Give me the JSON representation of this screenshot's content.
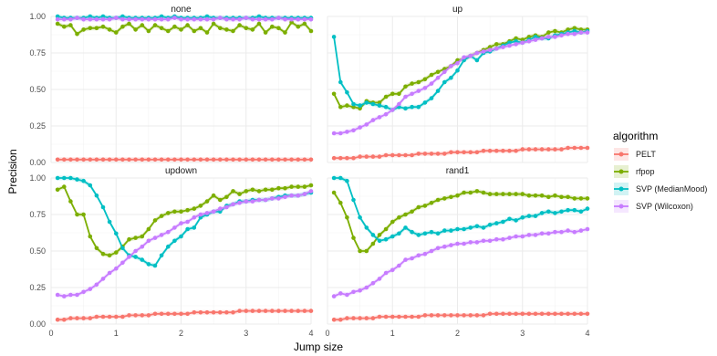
{
  "chart_data": {
    "type": "line",
    "xlabel": "Jump size",
    "ylabel": "Precision",
    "xlim": [
      0,
      4
    ],
    "ylim": [
      0,
      1
    ],
    "x_ticks": [
      0,
      1,
      2,
      3,
      4
    ],
    "y_ticks": [
      0.0,
      0.25,
      0.5,
      0.75,
      1.0
    ],
    "y_tick_labels": [
      "0.00",
      "0.25",
      "0.50",
      "0.75",
      "1.00"
    ],
    "grid": true,
    "legend_title": "algorithm",
    "legend_position": "right",
    "series_styles": [
      {
        "name": "PELT",
        "color": "#F8766D"
      },
      {
        "name": "rfpop",
        "color": "#7CAE00"
      },
      {
        "name": "SVP (MedianMood)",
        "color": "#00BFC4"
      },
      {
        "name": "SVP (Wilcoxon)",
        "color": "#C77CFF"
      }
    ],
    "x": [
      0.1,
      0.2,
      0.3,
      0.4,
      0.5,
      0.6,
      0.7,
      0.8,
      0.9,
      1.0,
      1.1,
      1.2,
      1.3,
      1.4,
      1.5,
      1.6,
      1.7,
      1.8,
      1.9,
      2.0,
      2.1,
      2.2,
      2.3,
      2.4,
      2.5,
      2.6,
      2.7,
      2.8,
      2.9,
      3.0,
      3.1,
      3.2,
      3.3,
      3.4,
      3.5,
      3.6,
      3.7,
      3.8,
      3.9,
      4.0
    ],
    "panels": [
      {
        "title": "none",
        "series": [
          {
            "name": "PELT",
            "values": [
              0.02,
              0.02,
              0.02,
              0.02,
              0.02,
              0.02,
              0.02,
              0.02,
              0.02,
              0.02,
              0.02,
              0.02,
              0.02,
              0.02,
              0.02,
              0.02,
              0.02,
              0.02,
              0.02,
              0.02,
              0.02,
              0.02,
              0.02,
              0.02,
              0.02,
              0.02,
              0.02,
              0.02,
              0.02,
              0.02,
              0.02,
              0.02,
              0.02,
              0.02,
              0.02,
              0.02,
              0.02,
              0.02,
              0.02,
              0.02
            ]
          },
          {
            "name": "rfpop",
            "values": [
              0.95,
              0.93,
              0.94,
              0.88,
              0.91,
              0.92,
              0.92,
              0.93,
              0.91,
              0.89,
              0.93,
              0.95,
              0.91,
              0.94,
              0.9,
              0.94,
              0.92,
              0.9,
              0.93,
              0.91,
              0.94,
              0.9,
              0.92,
              0.89,
              0.95,
              0.92,
              0.91,
              0.9,
              0.94,
              0.92,
              0.91,
              0.95,
              0.89,
              0.93,
              0.92,
              0.89,
              0.96,
              0.93,
              0.95,
              0.9
            ]
          },
          {
            "name": "SVP (MedianMood)",
            "values": [
              1.0,
              0.99,
              0.99,
              0.99,
              0.99,
              1.0,
              0.99,
              1.0,
              0.99,
              0.99,
              1.0,
              0.99,
              0.99,
              0.99,
              0.99,
              0.99,
              1.0,
              0.99,
              1.0,
              0.99,
              0.99,
              0.99,
              0.99,
              1.0,
              0.99,
              0.99,
              0.99,
              0.99,
              0.99,
              0.99,
              0.99,
              1.0,
              0.99,
              0.99,
              0.99,
              0.99,
              0.99,
              0.99,
              0.99,
              0.99
            ]
          },
          {
            "name": "SVP (Wilcoxon)",
            "values": [
              0.98,
              0.98,
              0.98,
              0.99,
              0.98,
              0.98,
              0.98,
              0.98,
              0.98,
              0.99,
              0.98,
              0.98,
              0.98,
              0.98,
              0.98,
              0.98,
              0.98,
              0.98,
              0.99,
              0.98,
              0.98,
              0.98,
              0.98,
              0.98,
              0.98,
              0.99,
              0.98,
              0.98,
              0.98,
              0.99,
              0.98,
              0.98,
              0.98,
              0.98,
              0.99,
              0.98,
              0.98,
              0.98,
              0.98,
              0.98
            ]
          }
        ]
      },
      {
        "title": "up",
        "series": [
          {
            "name": "PELT",
            "values": [
              0.03,
              0.03,
              0.03,
              0.03,
              0.04,
              0.04,
              0.04,
              0.04,
              0.05,
              0.05,
              0.05,
              0.05,
              0.05,
              0.06,
              0.06,
              0.06,
              0.06,
              0.06,
              0.07,
              0.07,
              0.07,
              0.07,
              0.07,
              0.08,
              0.08,
              0.08,
              0.08,
              0.08,
              0.08,
              0.09,
              0.09,
              0.09,
              0.09,
              0.09,
              0.09,
              0.09,
              0.1,
              0.1,
              0.1,
              0.1
            ]
          },
          {
            "name": "rfpop",
            "values": [
              0.47,
              0.38,
              0.39,
              0.38,
              0.37,
              0.42,
              0.41,
              0.41,
              0.45,
              0.47,
              0.47,
              0.52,
              0.54,
              0.55,
              0.57,
              0.6,
              0.62,
              0.64,
              0.66,
              0.7,
              0.71,
              0.73,
              0.75,
              0.77,
              0.79,
              0.81,
              0.81,
              0.83,
              0.85,
              0.84,
              0.86,
              0.87,
              0.86,
              0.89,
              0.9,
              0.89,
              0.91,
              0.92,
              0.91,
              0.91
            ]
          },
          {
            "name": "SVP (MedianMood)",
            "values": [
              0.86,
              0.55,
              0.48,
              0.4,
              0.39,
              0.41,
              0.4,
              0.39,
              0.38,
              0.36,
              0.38,
              0.37,
              0.38,
              0.38,
              0.41,
              0.44,
              0.49,
              0.55,
              0.58,
              0.63,
              0.7,
              0.73,
              0.7,
              0.75,
              0.76,
              0.78,
              0.8,
              0.82,
              0.83,
              0.82,
              0.84,
              0.86,
              0.85,
              0.85,
              0.87,
              0.88,
              0.89,
              0.9,
              0.89,
              0.9
            ]
          },
          {
            "name": "SVP (Wilcoxon)",
            "values": [
              0.2,
              0.2,
              0.21,
              0.22,
              0.24,
              0.26,
              0.29,
              0.31,
              0.33,
              0.36,
              0.4,
              0.45,
              0.47,
              0.49,
              0.51,
              0.54,
              0.58,
              0.62,
              0.66,
              0.68,
              0.72,
              0.73,
              0.75,
              0.76,
              0.77,
              0.78,
              0.79,
              0.8,
              0.81,
              0.82,
              0.83,
              0.84,
              0.85,
              0.86,
              0.86,
              0.87,
              0.88,
              0.88,
              0.89,
              0.89
            ]
          }
        ]
      },
      {
        "title": "updown",
        "series": [
          {
            "name": "PELT",
            "values": [
              0.03,
              0.03,
              0.04,
              0.04,
              0.04,
              0.04,
              0.05,
              0.05,
              0.05,
              0.05,
              0.05,
              0.06,
              0.06,
              0.06,
              0.06,
              0.07,
              0.07,
              0.07,
              0.07,
              0.07,
              0.07,
              0.08,
              0.08,
              0.08,
              0.08,
              0.08,
              0.08,
              0.08,
              0.09,
              0.09,
              0.09,
              0.09,
              0.09,
              0.09,
              0.09,
              0.09,
              0.09,
              0.09,
              0.09,
              0.09
            ]
          },
          {
            "name": "rfpop",
            "values": [
              0.92,
              0.94,
              0.84,
              0.75,
              0.75,
              0.6,
              0.52,
              0.48,
              0.47,
              0.49,
              0.53,
              0.58,
              0.59,
              0.6,
              0.65,
              0.71,
              0.74,
              0.76,
              0.77,
              0.77,
              0.78,
              0.79,
              0.81,
              0.84,
              0.88,
              0.85,
              0.87,
              0.91,
              0.89,
              0.91,
              0.92,
              0.91,
              0.92,
              0.92,
              0.93,
              0.93,
              0.94,
              0.94,
              0.94,
              0.95
            ]
          },
          {
            "name": "SVP (MedianMood)",
            "values": [
              1.0,
              1.0,
              1.0,
              0.99,
              0.98,
              0.95,
              0.88,
              0.8,
              0.7,
              0.62,
              0.52,
              0.47,
              0.46,
              0.44,
              0.41,
              0.4,
              0.47,
              0.53,
              0.57,
              0.6,
              0.65,
              0.66,
              0.73,
              0.75,
              0.77,
              0.77,
              0.81,
              0.82,
              0.84,
              0.84,
              0.85,
              0.85,
              0.85,
              0.86,
              0.87,
              0.88,
              0.88,
              0.88,
              0.89,
              0.9
            ]
          },
          {
            "name": "SVP (Wilcoxon)",
            "values": [
              0.2,
              0.19,
              0.2,
              0.2,
              0.22,
              0.24,
              0.27,
              0.31,
              0.35,
              0.38,
              0.42,
              0.46,
              0.5,
              0.53,
              0.57,
              0.59,
              0.61,
              0.63,
              0.66,
              0.69,
              0.7,
              0.73,
              0.75,
              0.76,
              0.77,
              0.79,
              0.8,
              0.82,
              0.83,
              0.84,
              0.84,
              0.85,
              0.85,
              0.86,
              0.86,
              0.87,
              0.88,
              0.88,
              0.89,
              0.91
            ]
          }
        ]
      },
      {
        "title": "rand1",
        "series": [
          {
            "name": "PELT",
            "values": [
              0.03,
              0.03,
              0.04,
              0.04,
              0.04,
              0.04,
              0.04,
              0.05,
              0.05,
              0.05,
              0.05,
              0.05,
              0.05,
              0.05,
              0.06,
              0.06,
              0.06,
              0.06,
              0.06,
              0.06,
              0.06,
              0.06,
              0.06,
              0.06,
              0.07,
              0.07,
              0.07,
              0.07,
              0.07,
              0.07,
              0.07,
              0.07,
              0.07,
              0.07,
              0.07,
              0.07,
              0.07,
              0.07,
              0.07,
              0.07
            ]
          },
          {
            "name": "rfpop",
            "values": [
              0.9,
              0.83,
              0.73,
              0.59,
              0.5,
              0.5,
              0.55,
              0.61,
              0.65,
              0.7,
              0.73,
              0.75,
              0.77,
              0.8,
              0.81,
              0.83,
              0.85,
              0.86,
              0.87,
              0.88,
              0.9,
              0.9,
              0.91,
              0.9,
              0.89,
              0.89,
              0.89,
              0.89,
              0.89,
              0.89,
              0.88,
              0.88,
              0.88,
              0.87,
              0.88,
              0.87,
              0.87,
              0.86,
              0.86,
              0.86
            ]
          },
          {
            "name": "SVP (MedianMood)",
            "values": [
              1.0,
              1.0,
              0.98,
              0.85,
              0.73,
              0.66,
              0.61,
              0.57,
              0.58,
              0.6,
              0.62,
              0.66,
              0.63,
              0.61,
              0.62,
              0.63,
              0.62,
              0.64,
              0.64,
              0.65,
              0.65,
              0.66,
              0.67,
              0.66,
              0.68,
              0.69,
              0.7,
              0.72,
              0.71,
              0.73,
              0.74,
              0.74,
              0.76,
              0.77,
              0.76,
              0.77,
              0.78,
              0.78,
              0.77,
              0.79
            ]
          },
          {
            "name": "SVP (Wilcoxon)",
            "values": [
              0.19,
              0.21,
              0.2,
              0.22,
              0.23,
              0.25,
              0.28,
              0.31,
              0.35,
              0.37,
              0.4,
              0.44,
              0.45,
              0.47,
              0.48,
              0.5,
              0.52,
              0.53,
              0.54,
              0.55,
              0.55,
              0.56,
              0.56,
              0.57,
              0.57,
              0.58,
              0.58,
              0.59,
              0.6,
              0.6,
              0.61,
              0.61,
              0.62,
              0.62,
              0.63,
              0.63,
              0.64,
              0.63,
              0.64,
              0.65
            ]
          }
        ]
      }
    ]
  }
}
